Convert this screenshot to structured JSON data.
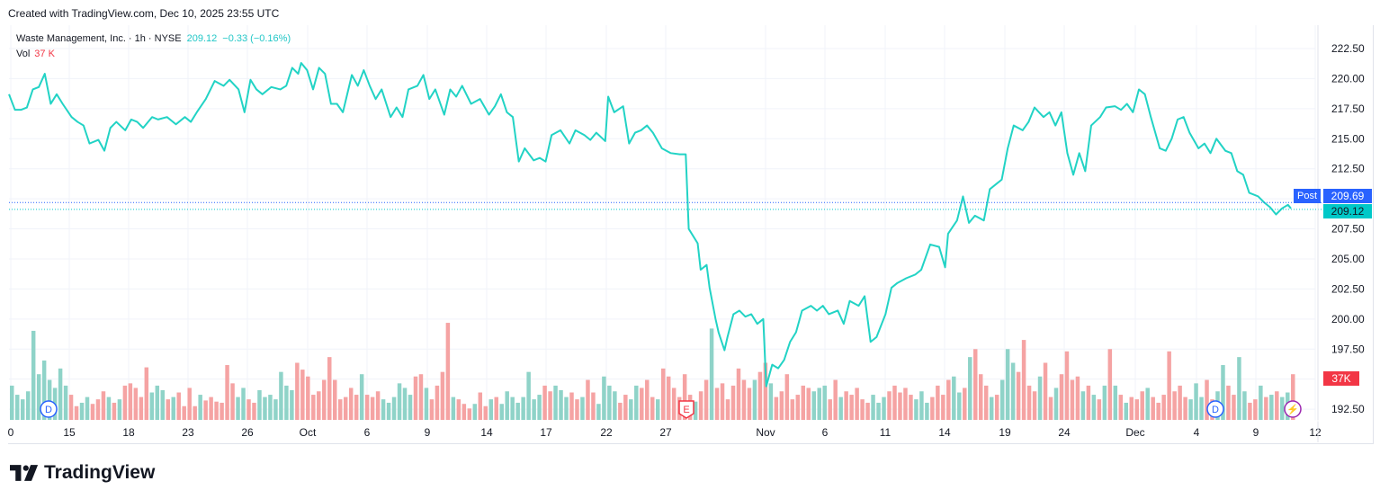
{
  "header": {
    "created": "Created with TradingView.com, Dec 10, 2025 23:55 UTC"
  },
  "legend": {
    "symbol": "Waste Management, Inc. · 1h · NYSE",
    "price": "209.12",
    "change": "−0.33 (−0.16%)",
    "vol_label": "Vol",
    "vol_value": "37 K"
  },
  "price_tags": {
    "post_label": "Post",
    "post_price": "209.69",
    "last_price": "209.12",
    "volume_tag": "37K"
  },
  "markers": {
    "dividend": "D",
    "earnings": "E",
    "split": "⚡"
  },
  "logo": {
    "text": "TradingView"
  },
  "colors": {
    "line": "#22d3c5",
    "up": "#8fd3c8",
    "down": "#f5a3a3",
    "post": "#2962ff",
    "last": "#00c8c8",
    "vol_tag": "#f23645",
    "grid": "#f0f3fa"
  },
  "chart_data": {
    "type": "line",
    "title": "Waste Management, Inc. · 1h · NYSE",
    "ylim": [
      191.5,
      223.5
    ],
    "y_ticks": [
      "222.50",
      "220.00",
      "217.50",
      "215.00",
      "212.50",
      "210.00",
      "207.50",
      "205.00",
      "202.50",
      "200.00",
      "197.50",
      "195.00",
      "192.50"
    ],
    "x_ticks": [
      "0",
      "15",
      "18",
      "23",
      "26",
      "Oct",
      "6",
      "9",
      "14",
      "17",
      "22",
      "27",
      "Nov",
      "6",
      "11",
      "14",
      "19",
      "24",
      "Dec",
      "4",
      "9",
      "12"
    ],
    "price": [
      [
        0,
        218.7
      ],
      [
        2,
        217.4
      ],
      [
        4,
        217.4
      ],
      [
        6,
        217.6
      ],
      [
        8,
        219.1
      ],
      [
        10,
        219.3
      ],
      [
        12,
        220.4
      ],
      [
        14,
        217.9
      ],
      [
        16,
        218.7
      ],
      [
        18,
        217.9
      ],
      [
        21,
        216.8
      ],
      [
        23,
        216.4
      ],
      [
        25,
        216.1
      ],
      [
        27,
        214.6
      ],
      [
        30,
        214.9
      ],
      [
        32,
        214.0
      ],
      [
        34,
        215.9
      ],
      [
        36,
        216.4
      ],
      [
        39,
        215.7
      ],
      [
        41,
        216.6
      ],
      [
        43,
        216.4
      ],
      [
        45,
        215.9
      ],
      [
        48,
        216.8
      ],
      [
        50,
        216.6
      ],
      [
        53,
        216.8
      ],
      [
        56,
        216.2
      ],
      [
        59,
        216.8
      ],
      [
        61,
        216.4
      ],
      [
        63,
        217.2
      ],
      [
        66,
        218.3
      ],
      [
        69,
        219.8
      ],
      [
        72,
        219.4
      ],
      [
        74,
        219.9
      ],
      [
        77,
        219.1
      ],
      [
        79,
        217.2
      ],
      [
        81,
        219.9
      ],
      [
        83,
        219.1
      ],
      [
        85,
        218.7
      ],
      [
        88,
        219.3
      ],
      [
        91,
        219.1
      ],
      [
        93,
        219.4
      ],
      [
        95,
        220.9
      ],
      [
        97,
        220.4
      ],
      [
        98,
        221.3
      ],
      [
        100,
        220.7
      ],
      [
        102,
        219.1
      ],
      [
        104,
        220.9
      ],
      [
        106,
        220.4
      ],
      [
        108,
        217.9
      ],
      [
        110,
        217.9
      ],
      [
        112,
        217.2
      ],
      [
        115,
        220.3
      ],
      [
        117,
        219.4
      ],
      [
        119,
        220.7
      ],
      [
        121,
        219.4
      ],
      [
        123,
        218.3
      ],
      [
        125,
        219.1
      ],
      [
        128,
        216.8
      ],
      [
        130,
        217.6
      ],
      [
        132,
        216.8
      ],
      [
        134,
        219.1
      ],
      [
        137,
        219.4
      ],
      [
        139,
        220.3
      ],
      [
        141,
        218.3
      ],
      [
        143,
        219.1
      ],
      [
        146,
        217.0
      ],
      [
        148,
        219.1
      ],
      [
        150,
        218.5
      ],
      [
        152,
        219.4
      ],
      [
        155,
        217.9
      ],
      [
        158,
        218.3
      ],
      [
        161,
        217.0
      ],
      [
        163,
        217.7
      ],
      [
        165,
        218.7
      ],
      [
        167,
        217.2
      ],
      [
        169,
        216.8
      ],
      [
        171,
        213.1
      ],
      [
        173,
        214.2
      ],
      [
        176,
        213.2
      ],
      [
        178,
        213.4
      ],
      [
        180,
        213.1
      ],
      [
        182,
        215.3
      ],
      [
        185,
        215.7
      ],
      [
        188,
        214.6
      ],
      [
        190,
        215.7
      ],
      [
        193,
        215.3
      ],
      [
        195,
        214.9
      ],
      [
        197,
        215.5
      ],
      [
        200,
        214.8
      ],
      [
        201,
        218.5
      ],
      [
        203,
        217.2
      ],
      [
        206,
        217.7
      ],
      [
        208,
        214.6
      ],
      [
        210,
        215.5
      ],
      [
        212,
        215.7
      ],
      [
        214,
        216.1
      ],
      [
        216,
        215.5
      ],
      [
        219,
        214.2
      ],
      [
        222,
        213.8
      ],
      [
        225,
        213.7
      ],
      [
        227,
        213.7
      ],
      [
        228,
        207.5
      ],
      [
        231,
        206.3
      ],
      [
        232,
        204.1
      ],
      [
        234,
        204.5
      ],
      [
        235,
        202.6
      ],
      [
        237,
        200.0
      ],
      [
        238,
        198.9
      ],
      [
        240,
        197.4
      ],
      [
        241,
        198.5
      ],
      [
        243,
        200.4
      ],
      [
        245,
        200.7
      ],
      [
        247,
        200.2
      ],
      [
        249,
        200.4
      ],
      [
        251,
        199.6
      ],
      [
        253,
        200.0
      ],
      [
        254,
        194.4
      ],
      [
        256,
        196.2
      ],
      [
        258,
        195.9
      ],
      [
        260,
        196.6
      ],
      [
        262,
        198.1
      ],
      [
        264,
        198.9
      ],
      [
        266,
        200.7
      ],
      [
        269,
        201.1
      ],
      [
        271,
        200.7
      ],
      [
        273,
        201.1
      ],
      [
        275,
        200.4
      ],
      [
        278,
        200.7
      ],
      [
        280,
        199.6
      ],
      [
        282,
        201.5
      ],
      [
        285,
        201.1
      ],
      [
        287,
        201.9
      ],
      [
        289,
        198.1
      ],
      [
        291,
        198.5
      ],
      [
        294,
        200.4
      ],
      [
        296,
        202.6
      ],
      [
        298,
        203.0
      ],
      [
        301,
        203.4
      ],
      [
        304,
        203.7
      ],
      [
        306,
        204.1
      ],
      [
        309,
        206.2
      ],
      [
        312,
        206.0
      ],
      [
        314,
        204.3
      ],
      [
        315,
        207.1
      ],
      [
        318,
        208.2
      ],
      [
        320,
        210.2
      ],
      [
        322,
        208.0
      ],
      [
        324,
        208.6
      ],
      [
        327,
        208.2
      ],
      [
        329,
        210.8
      ],
      [
        331,
        211.2
      ],
      [
        333,
        211.6
      ],
      [
        335,
        214.2
      ],
      [
        337,
        216.1
      ],
      [
        340,
        215.7
      ],
      [
        342,
        216.4
      ],
      [
        344,
        217.6
      ],
      [
        347,
        216.8
      ],
      [
        349,
        217.2
      ],
      [
        351,
        216.1
      ],
      [
        353,
        217.2
      ],
      [
        355,
        213.8
      ],
      [
        357,
        212.0
      ],
      [
        359,
        213.8
      ],
      [
        361,
        212.3
      ],
      [
        363,
        216.1
      ],
      [
        366,
        216.8
      ],
      [
        368,
        217.6
      ],
      [
        371,
        217.7
      ],
      [
        373,
        217.4
      ],
      [
        375,
        217.9
      ],
      [
        377,
        217.2
      ],
      [
        379,
        219.1
      ],
      [
        381,
        218.7
      ],
      [
        383,
        216.8
      ],
      [
        386,
        214.2
      ],
      [
        388,
        214.0
      ],
      [
        390,
        215.0
      ],
      [
        392,
        216.6
      ],
      [
        394,
        216.8
      ],
      [
        396,
        215.5
      ],
      [
        399,
        214.2
      ],
      [
        401,
        214.6
      ],
      [
        403,
        213.8
      ],
      [
        405,
        215.0
      ],
      [
        408,
        214.0
      ],
      [
        410,
        213.8
      ],
      [
        412,
        212.3
      ],
      [
        414,
        212.0
      ],
      [
        416,
        210.5
      ],
      [
        419,
        210.2
      ],
      [
        421,
        209.7
      ],
      [
        423,
        209.3
      ],
      [
        425,
        208.7
      ],
      [
        427,
        209.2
      ],
      [
        429,
        209.5
      ],
      [
        430,
        209.2
      ]
    ],
    "volume_k": [
      30,
      22,
      18,
      25,
      78,
      40,
      52,
      35,
      28,
      45,
      30,
      -22,
      -12,
      15,
      20,
      -14,
      -18,
      -25,
      20,
      -15,
      18,
      -30,
      -32,
      -28,
      -20,
      -46,
      24,
      30,
      26,
      -18,
      20,
      -24,
      -12,
      -28,
      -12,
      22,
      -17,
      -20,
      -16,
      -15,
      -48,
      -32,
      20,
      28,
      -18,
      -15,
      26,
      20,
      22,
      18,
      42,
      30,
      26,
      -50,
      -44,
      -38,
      -22,
      -25,
      -35,
      -55,
      -35,
      -18,
      -20,
      -28,
      -22,
      40,
      -22,
      -20,
      -25,
      18,
      15,
      20,
      32,
      28,
      22,
      -38,
      -40,
      28,
      -18,
      -30,
      -42,
      -85,
      20,
      -18,
      -14,
      -10,
      14,
      -24,
      -12,
      18,
      -20,
      14,
      25,
      20,
      15,
      20,
      42,
      18,
      22,
      -30,
      -25,
      30,
      26,
      20,
      -24,
      -18,
      20,
      -35,
      -24,
      14,
      38,
      30,
      25,
      -15,
      -22,
      18,
      30,
      -28,
      -35,
      -20,
      18,
      -45,
      -38,
      -28,
      -20,
      -40,
      -22,
      16,
      -25,
      -35,
      80,
      -28,
      -32,
      -18,
      -30,
      -45,
      -35,
      -28,
      35,
      -42,
      -50,
      32,
      -20,
      -25,
      -40,
      -18,
      -22,
      -30,
      -28,
      25,
      28,
      30,
      -18,
      -35,
      20,
      -25,
      -22,
      -28,
      -18,
      -15,
      22,
      15,
      20,
      -25,
      -30,
      -24,
      -28,
      -22,
      18,
      25,
      15,
      -20,
      -30,
      -22,
      -35,
      38,
      24,
      -28,
      55,
      -62,
      -40,
      -30,
      20,
      -22,
      35,
      62,
      50,
      -42,
      -70,
      -30,
      -25,
      38,
      -50,
      -20,
      28,
      -40,
      -60,
      -35,
      -38,
      25,
      -30,
      22,
      -18,
      30,
      -62,
      30,
      -22,
      15,
      -20,
      -18,
      -25,
      28,
      -20,
      -15,
      -22,
      -60,
      -25,
      -30,
      -20,
      18,
      32,
      20,
      -35,
      -18,
      25,
      48,
      -30,
      -22,
      55,
      25,
      -15,
      -18,
      30,
      -20,
      22,
      -25,
      20,
      24,
      -40
    ]
  }
}
